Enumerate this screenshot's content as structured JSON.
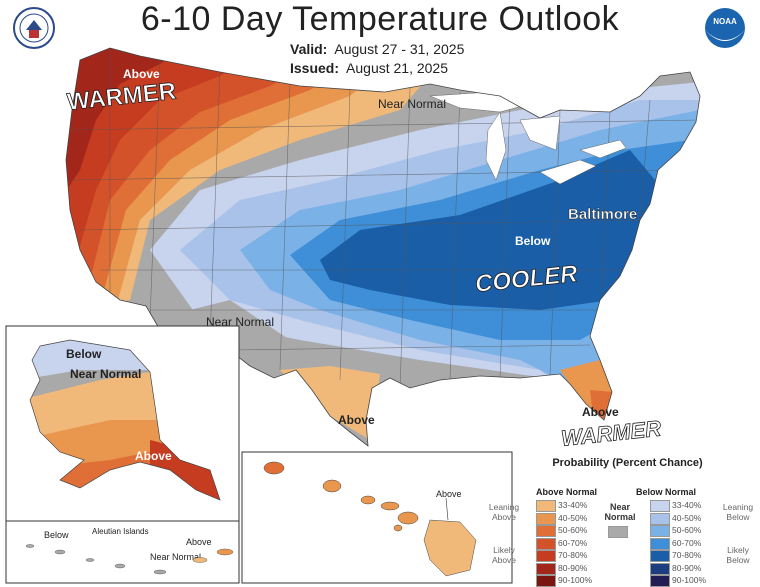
{
  "header": {
    "title": "6-10 Day Temperature Outlook",
    "valid_label": "Valid:",
    "valid_value": "August 27 - 31, 2025",
    "issued_label": "Issued:",
    "issued_value": "August 21, 2025"
  },
  "logos": {
    "left": "department-seal",
    "right": "noaa-logo",
    "right_text": "NOAA"
  },
  "map_labels": {
    "warmer_west": "WARMER",
    "above_nw": "Above",
    "near_normal_north": "Near Normal",
    "near_normal_sw": "Near Normal",
    "baltimore": "Baltimore",
    "below_east": "Below",
    "cooler": "COOLER",
    "above_texas": "Above",
    "above_florida": "Above",
    "warmer_se": "WARMER",
    "alaska_below": "Below",
    "alaska_near_normal": "Near Normal",
    "alaska_above": "Above",
    "hawaii_above": "Above",
    "aleutian_title": "Aleutian Islands",
    "aleutian_below": "Below",
    "aleutian_above": "Above",
    "aleutian_near_normal": "Near Normal"
  },
  "legend": {
    "title": "Probability (Percent Chance)",
    "above_head": "Above Normal",
    "below_head": "Below Normal",
    "near_normal": "Near Normal",
    "leaning_above": "Leaning Above",
    "likely_above": "Likely Above",
    "leaning_below": "Leaning Below",
    "likely_below": "Likely Below",
    "bins": [
      "33-40%",
      "40-50%",
      "50-60%",
      "60-70%",
      "70-80%",
      "80-90%",
      "90-100%"
    ],
    "above_colors": [
      "#f0b97a",
      "#e9974f",
      "#df6f36",
      "#d4522a",
      "#c63c20",
      "#a3261a",
      "#7a1510"
    ],
    "below_colors": [
      "#c8d3ee",
      "#a8c2ea",
      "#7ab1e6",
      "#3e8fd8",
      "#1a5ea8",
      "#1c3d80",
      "#221c55"
    ],
    "near_color": "#a9a9a9"
  }
}
